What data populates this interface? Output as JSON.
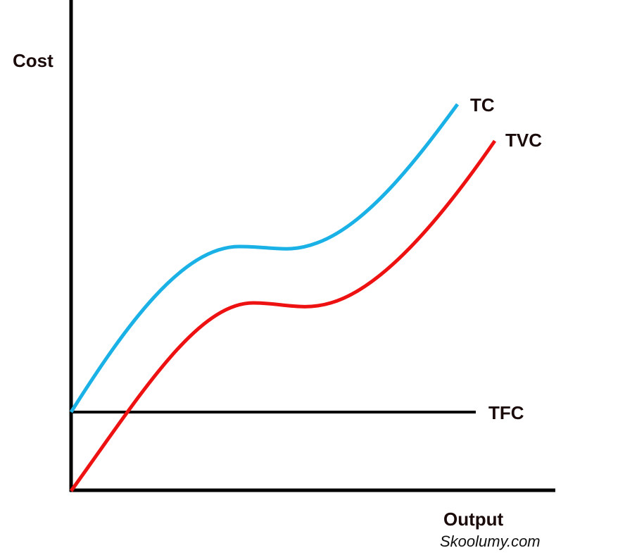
{
  "axes": {
    "y_label": "Cost",
    "x_label": "Output"
  },
  "curves": {
    "tc": "TC",
    "tvc": "TVC",
    "tfc": "TFC"
  },
  "watermark": "Skoolumy.com"
}
